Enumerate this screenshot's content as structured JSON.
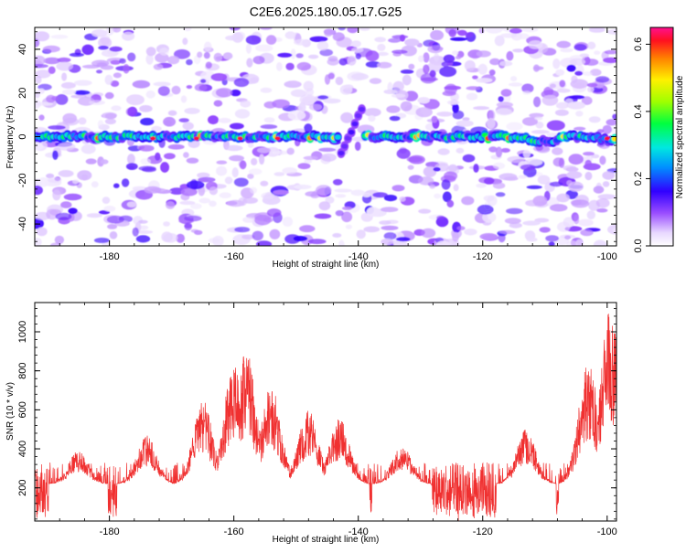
{
  "page_title": "C2E6.2025.180.05.17.G25",
  "chart_data": [
    {
      "type": "heatmap",
      "name": "spectrogram",
      "title": "C2E6.2025.180.05.17.G25",
      "xlabel": "Height of straight line (km)",
      "ylabel": "Frequency (Hz)",
      "xlim": [
        -192,
        -98.5
      ],
      "ylim": [
        -50,
        50
      ],
      "x_ticks": [
        "-180",
        "-160",
        "-140",
        "-120",
        "-100"
      ],
      "x_tick_values": [
        -180,
        -160,
        -140,
        -120,
        -100
      ],
      "y_ticks": [
        "40",
        "20",
        "0",
        "-20",
        "-40"
      ],
      "y_tick_values": [
        40,
        20,
        0,
        -20,
        -40
      ],
      "colorbar": {
        "label": "Normalized spectral amplitude",
        "range": [
          0,
          0.65
        ],
        "ticks": [
          "0.0",
          "0.2",
          "0.4",
          "0.6"
        ],
        "tick_values": [
          0.0,
          0.2,
          0.4,
          0.6
        ]
      },
      "features": {
        "carrier_frequency_hz": 0,
        "carrier_peak_amplitude": 0.62,
        "carrier_discontinuity_km": -141.5
      }
    },
    {
      "type": "line",
      "name": "snr",
      "title": "",
      "xlabel": "Height of straight line (km)",
      "ylabel": "SNR (10 * v/v)",
      "xlim": [
        -192,
        -98.5
      ],
      "ylim": [
        30,
        1150
      ],
      "x_ticks": [
        "-180",
        "-160",
        "-140",
        "-120",
        "-100"
      ],
      "x_tick_values": [
        -180,
        -160,
        -140,
        -120,
        -100
      ],
      "y_ticks": [
        "200",
        "400",
        "600",
        "800",
        "1000"
      ],
      "y_tick_values": [
        200,
        400,
        600,
        800,
        1000
      ],
      "series": [
        {
          "color": "#f03030",
          "baseline": 220,
          "noise_range": [
            60,
            420
          ],
          "peaks": [
            {
              "x": -185,
              "y": 390
            },
            {
              "x": -174,
              "y": 470
            },
            {
              "x": -165,
              "y": 650
            },
            {
              "x": -160,
              "y": 840
            },
            {
              "x": -158,
              "y": 900
            },
            {
              "x": -154,
              "y": 720
            },
            {
              "x": -148,
              "y": 600
            },
            {
              "x": -143,
              "y": 560
            },
            {
              "x": -133,
              "y": 420
            },
            {
              "x": -113,
              "y": 500
            },
            {
              "x": -103,
              "y": 850
            },
            {
              "x": -99.5,
              "y": 1120
            }
          ]
        }
      ]
    }
  ]
}
